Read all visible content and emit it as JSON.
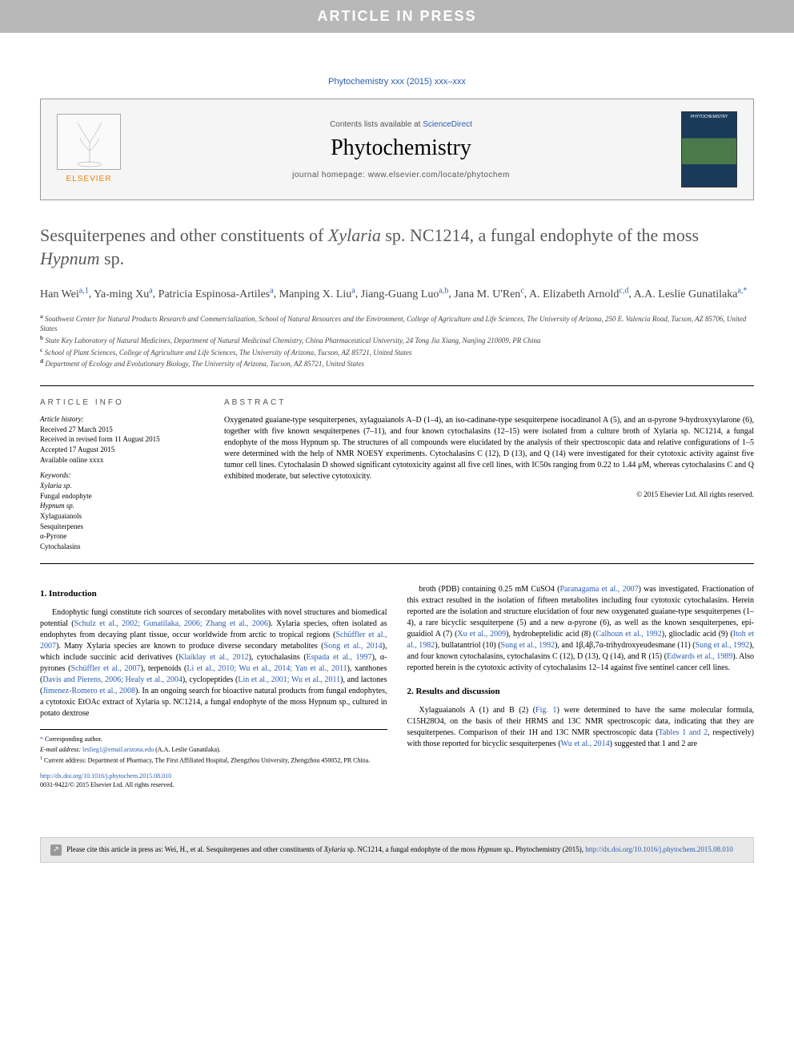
{
  "inPressBanner": "ARTICLE IN PRESS",
  "citationLine": "Phytochemistry xxx (2015) xxx–xxx",
  "header": {
    "contentsPrefix": "Contents lists available at ",
    "scienceDirect": "ScienceDirect",
    "journalName": "Phytochemistry",
    "homepagePrefix": "journal homepage: ",
    "homepageUrl": "www.elsevier.com/locate/phytochem"
  },
  "title": {
    "part1": "Sesquiterpenes and other constituents of ",
    "italic1": "Xylaria",
    "part2": " sp. NC1214, a fungal endophyte of the moss ",
    "italic2": "Hypnum",
    "part3": " sp."
  },
  "authors": [
    {
      "name": "Han Wei",
      "sup": "a,1"
    },
    {
      "name": "Ya-ming Xu",
      "sup": "a"
    },
    {
      "name": "Patricia Espinosa-Artiles",
      "sup": "a"
    },
    {
      "name": "Manping X. Liu",
      "sup": "a"
    },
    {
      "name": "Jiang-Guang Luo",
      "sup": "a,b"
    },
    {
      "name": "Jana M. U'Ren",
      "sup": "c"
    },
    {
      "name": "A. Elizabeth Arnold",
      "sup": "c,d"
    },
    {
      "name": "A.A. Leslie Gunatilaka",
      "sup": "a,*",
      "corresponding": true
    }
  ],
  "affiliations": [
    {
      "sup": "a",
      "text": "Southwest Center for Natural Products Research and Commercialization, School of Natural Resources and the Environment, College of Agriculture and Life Sciences, The University of Arizona, 250 E. Valencia Road, Tucson, AZ 85706, United States"
    },
    {
      "sup": "b",
      "text": "State Key Laboratory of Natural Medicines, Department of Natural Medicinal Chemistry, China Pharmaceutical University, 24 Tong Jia Xiang, Nanjing 210009, PR China"
    },
    {
      "sup": "c",
      "text": "School of Plant Sciences, College of Agriculture and Life Sciences, The University of Arizona, Tucson, AZ 85721, United States"
    },
    {
      "sup": "d",
      "text": "Department of Ecology and Evolutionary Biology, The University of Arizona, Tucson, AZ 85721, United States"
    }
  ],
  "articleInfo": {
    "heading": "ARTICLE INFO",
    "historyLabel": "Article history:",
    "history": [
      "Received 27 March 2015",
      "Received in revised form 11 August 2015",
      "Accepted 17 August 2015",
      "Available online xxxx"
    ],
    "keywordsLabel": "Keywords:",
    "keywords": [
      "Xylaria sp.",
      "Fungal endophyte",
      "Hypnum sp.",
      "Xylaguaianols",
      "Sesquiterpenes",
      "α-Pyrone",
      "Cytochalasins"
    ]
  },
  "abstract": {
    "heading": "ABSTRACT",
    "text": "Oxygenated guaiane-type sesquiterpenes, xylaguaianols A–D (1–4), an iso-cadinane-type sesquiterpene isocadinanol A (5), and an α-pyrone 9-hydroxyxylarone (6), together with five known sesquiterpenes (7–11), and four known cytochalasins (12–15) were isolated from a culture broth of Xylaria sp. NC1214, a fungal endophyte of the moss Hypnum sp. The structures of all compounds were elucidated by the analysis of their spectroscopic data and relative configurations of 1–5 were determined with the help of NMR NOESY experiments. Cytochalasins C (12), D (13), and Q (14) were investigated for their cytotoxic activity against five tumor cell lines. Cytochalasin D showed significant cytotoxicity against all five cell lines, with IC50s ranging from 0.22 to 1.44 μM, whereas cytochalasins C and Q exhibited moderate, but selective cytotoxicity.",
    "copyright": "© 2015 Elsevier Ltd. All rights reserved."
  },
  "sections": {
    "intro": {
      "heading": "1. Introduction",
      "p1_a": "Endophytic fungi constitute rich sources of secondary metabolites with novel structures and biomedical potential (",
      "p1_ref1": "Schulz et al., 2002; Gunatilaka, 2006; Zhang et al., 2006",
      "p1_b": "). Xylaria species, often isolated as endophytes from decaying plant tissue, occur worldwide from arctic to tropical regions (",
      "p1_ref2": "Schüffler et al., 2007",
      "p1_c": "). Many Xylaria species are known to produce diverse secondary metabolites (",
      "p1_ref3": "Song et al., 2014",
      "p1_d": "), which include succinic acid derivatives (",
      "p1_ref4": "Klaiklay et al., 2012",
      "p1_e": "), cytochalasins (",
      "p1_ref5": "Espada et al., 1997",
      "p1_f": "), α-pyrones (",
      "p1_ref6": "Schüffler et al., 2007",
      "p1_g": "), terpenoids (",
      "p1_ref7": "Li et al., 2010; Wu et al., 2014; Yan et al., 2011",
      "p1_h": "), xanthones (",
      "p1_ref8": "Davis and Pierens, 2006; Healy et al., 2004",
      "p1_i": "), cyclopeptides (",
      "p1_ref9": "Lin et al., 2001; Wu et al., 2011",
      "p1_j": "), and lactones (",
      "p1_ref10": "Jimenez-Romero et al., 2008",
      "p1_k": "). In an ongoing search for bioactive natural products from fungal endophytes, a cytotoxic EtOAc extract of Xylaria sp. NC1214, a fungal endophyte of the moss Hypnum sp., cultured in potato dextrose"
    },
    "col2": {
      "p1_a": "broth (PDB) containing 0.25 mM CuSO4 (",
      "p1_ref1": "Paranagama et al., 2007",
      "p1_b": ") was investigated. Fractionation of this extract resulted in the isolation of fifteen metabolites including four cytotoxic cytochalasins. Herein reported are the isolation and structure elucidation of four new oxygenated guaiane-type sesquiterpenes (1–4), a rare bicyclic sesquiterpene (5) and a new α-pyrone (6), as well as the known sesquiterpenes, epi-guaidiol A (7) (",
      "p1_ref2": "Xu et al., 2009",
      "p1_c": "), hydroheptelidic acid (8) (",
      "p1_ref3": "Calhoun et al., 1992",
      "p1_d": "), gliocladic acid (9) (",
      "p1_ref4": "Itoh et al., 1982",
      "p1_e": "), bullatantriol (10) (",
      "p1_ref5": "Sung et al., 1992",
      "p1_f": "), and 1β,4β,7α-trihydroxyeudesmane (11) (",
      "p1_ref6": "Sung et al., 1992",
      "p1_g": "), and four known cytochalasins, cytochalasins C (12), D (13), Q (14), and R (15) (",
      "p1_ref7": "Edwards et al., 1989",
      "p1_h": "). Also reported herein is the cytotoxic activity of cytochalasins 12–14 against five sentinel cancer cell lines."
    },
    "results": {
      "heading": "2. Results and discussion",
      "p1_a": "Xylaguaianols A (1) and B (2) (",
      "p1_ref1": "Fig. 1",
      "p1_b": ") were determined to have the same molecular formula, C15H28O4, on the basis of their HRMS and 13C NMR spectroscopic data, indicating that they are sesquiterpenes. Comparison of their 1H and 13C NMR spectroscopic data (",
      "p1_ref2": "Tables 1 and 2",
      "p1_c": ", respectively) with those reported for bicyclic sesquiterpenes (",
      "p1_ref3": "Wu et al., 2014",
      "p1_d": ") suggested that 1 and 2 are"
    }
  },
  "footnotes": {
    "corr": "Corresponding author.",
    "emailLabel": "E-mail address: ",
    "email": "leslieg1@email.arizona.edu",
    "emailSuffix": " (A.A. Leslie Gunatilaka).",
    "note1": "Current address: Department of Pharmacy, The First Affiliated Hospital, Zhengzhou University, Zhengzhou 450052, PR China."
  },
  "doi": {
    "url": "http://dx.doi.org/10.1016/j.phytochem.2015.08.010",
    "issn": "0031-9422/© 2015 Elsevier Ltd. All rights reserved."
  },
  "citeBox": {
    "prefix": "Please cite this article in press as: Wei, H., et al. Sesquiterpenes and other constituents of ",
    "italic1": "Xylaria",
    "mid": " sp. NC1214, a fungal endophyte of the moss ",
    "italic2": "Hypnum",
    "suffix": " sp.. Phytochemistry (2015), ",
    "link": "http://dx.doi.org/10.1016/j.phytochem.2015.08.010"
  },
  "colors": {
    "linkBlue": "#2a5db0",
    "bannerGray": "#b8b8b8",
    "headerBg": "#f5f5f5",
    "citeBg": "#e8e8e8",
    "elsevierOrange": "#ee7f00"
  }
}
